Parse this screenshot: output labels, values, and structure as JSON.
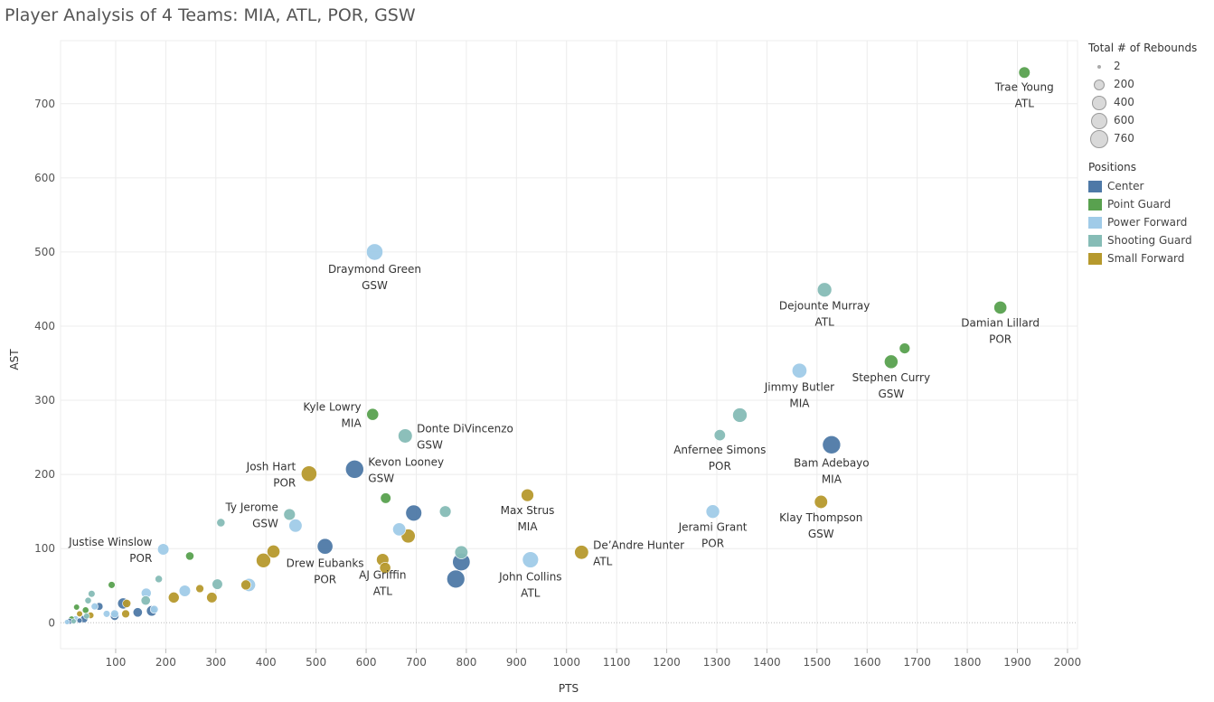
{
  "chart_data": {
    "type": "scatter",
    "title": "Player Analysis of 4 Teams: MIA, ATL, POR, GSW",
    "xlabel": "PTS",
    "ylabel": "AST",
    "xlim": [
      -10,
      2020
    ],
    "ylim": [
      -35,
      785
    ],
    "x_ticks": [
      100,
      200,
      300,
      400,
      500,
      600,
      700,
      800,
      900,
      1000,
      1100,
      1200,
      1300,
      1400,
      1500,
      1600,
      1700,
      1800,
      1900,
      2000
    ],
    "y_ticks": [
      0,
      100,
      200,
      300,
      400,
      500,
      600,
      700
    ],
    "grid": true,
    "size_legend_title": "Total # of Rebounds",
    "size_legend_values": [
      "2",
      "200",
      "400",
      "600",
      "760"
    ],
    "color_legend_title": "Positions",
    "positions": [
      {
        "name": "Center",
        "color": "#4e79a7"
      },
      {
        "name": "Point Guard",
        "color": "#59a14f"
      },
      {
        "name": "Power Forward",
        "color": "#a0cbe8"
      },
      {
        "name": "Shooting Guard",
        "color": "#86bcb6"
      },
      {
        "name": "Small Forward",
        "color": "#b6992d"
      }
    ],
    "points": [
      {
        "x": 1914,
        "y": 742,
        "reb": 220,
        "pos": "Point Guard",
        "name": "Trae Young",
        "team": "ATL",
        "label_side": "below"
      },
      {
        "x": 617,
        "y": 500,
        "reb": 600,
        "pos": "Power Forward",
        "name": "Draymond Green",
        "team": "GSW",
        "label_side": "below"
      },
      {
        "x": 1515,
        "y": 449,
        "reb": 420,
        "pos": "Shooting Guard",
        "name": "Dejounte Murray",
        "team": "ATL",
        "label_side": "below"
      },
      {
        "x": 1866,
        "y": 425,
        "reb": 310,
        "pos": "Point Guard",
        "name": "Damian Lillard",
        "team": "POR",
        "label_side": "below"
      },
      {
        "x": 1465,
        "y": 340,
        "reb": 450,
        "pos": "Power Forward",
        "name": "Jimmy Butler",
        "team": "MIA",
        "label_side": "below"
      },
      {
        "x": 1648,
        "y": 352,
        "reb": 360,
        "pos": "Point Guard",
        "name": "Stephen Curry",
        "team": "GSW",
        "label_side": "below"
      },
      {
        "x": 1675,
        "y": 370,
        "reb": 180,
        "pos": "Point Guard",
        "name": "",
        "team": "",
        "label_side": "none"
      },
      {
        "x": 613,
        "y": 281,
        "reb": 250,
        "pos": "Point Guard",
        "name": "Kyle Lowry",
        "team": "MIA",
        "label_side": "left"
      },
      {
        "x": 678,
        "y": 252,
        "reb": 400,
        "pos": "Shooting Guard",
        "name": "Donte DiVincenzo",
        "team": "GSW",
        "label_side": "right"
      },
      {
        "x": 1346,
        "y": 280,
        "reb": 420,
        "pos": "Shooting Guard",
        "name": "",
        "team": "",
        "label_side": "none"
      },
      {
        "x": 1306,
        "y": 253,
        "reb": 210,
        "pos": "Shooting Guard",
        "name": "Anfernee Simons",
        "team": "POR",
        "label_side": "below"
      },
      {
        "x": 1529,
        "y": 240,
        "reb": 760,
        "pos": "Center",
        "name": "Bam Adebayo",
        "team": "MIA",
        "label_side": "below"
      },
      {
        "x": 486,
        "y": 201,
        "reb": 520,
        "pos": "Small Forward",
        "name": "Josh Hart",
        "team": "POR",
        "label_side": "left"
      },
      {
        "x": 577,
        "y": 207,
        "reb": 760,
        "pos": "Center",
        "name": "Kevon Looney",
        "team": "GSW",
        "label_side": "right"
      },
      {
        "x": 922,
        "y": 172,
        "reb": 290,
        "pos": "Small Forward",
        "name": "Max Strus",
        "team": "MIA",
        "label_side": "below"
      },
      {
        "x": 1508,
        "y": 163,
        "reb": 330,
        "pos": "Small Forward",
        "name": "Klay Thompson",
        "team": "GSW",
        "label_side": "below"
      },
      {
        "x": 1292,
        "y": 150,
        "reb": 360,
        "pos": "Power Forward",
        "name": "Jerami Grant",
        "team": "POR",
        "label_side": "below"
      },
      {
        "x": 447,
        "y": 146,
        "reb": 230,
        "pos": "Shooting Guard",
        "name": "Ty Jerome",
        "team": "GSW",
        "label_side": "left"
      },
      {
        "x": 459,
        "y": 131,
        "reb": 330,
        "pos": "Power Forward",
        "name": "",
        "team": "",
        "label_side": "none"
      },
      {
        "x": 310,
        "y": 135,
        "reb": 80,
        "pos": "Shooting Guard",
        "name": "",
        "team": "",
        "label_side": "none"
      },
      {
        "x": 639,
        "y": 168,
        "reb": 170,
        "pos": "Point Guard",
        "name": "",
        "team": "",
        "label_side": "none"
      },
      {
        "x": 695,
        "y": 148,
        "reb": 560,
        "pos": "Center",
        "name": "",
        "team": "",
        "label_side": "none"
      },
      {
        "x": 758,
        "y": 150,
        "reb": 230,
        "pos": "Shooting Guard",
        "name": "",
        "team": "",
        "label_side": "none"
      },
      {
        "x": 666,
        "y": 126,
        "reb": 320,
        "pos": "Power Forward",
        "name": "",
        "team": "",
        "label_side": "none"
      },
      {
        "x": 684,
        "y": 117,
        "reb": 390,
        "pos": "Small Forward",
        "name": "",
        "team": "",
        "label_side": "none"
      },
      {
        "x": 518,
        "y": 103,
        "reb": 520,
        "pos": "Center",
        "name": "Drew Eubanks",
        "team": "POR",
        "label_side": "below"
      },
      {
        "x": 1030,
        "y": 95,
        "reb": 390,
        "pos": "Small Forward",
        "name": "De’Andre Hunter",
        "team": "ATL",
        "label_side": "right"
      },
      {
        "x": 928,
        "y": 85,
        "reb": 560,
        "pos": "Power Forward",
        "name": "John Collins",
        "team": "ATL",
        "label_side": "below"
      },
      {
        "x": 790,
        "y": 82,
        "reb": 700,
        "pos": "Center",
        "name": "",
        "team": "",
        "label_side": "none"
      },
      {
        "x": 779,
        "y": 59,
        "reb": 740,
        "pos": "Center",
        "name": "",
        "team": "",
        "label_side": "none"
      },
      {
        "x": 790,
        "y": 95,
        "reb": 330,
        "pos": "Shooting Guard",
        "name": "",
        "team": "",
        "label_side": "none"
      },
      {
        "x": 633,
        "y": 85,
        "reb": 280,
        "pos": "Small Forward",
        "name": "AJ Griffin",
        "team": "ATL",
        "label_side": "below"
      },
      {
        "x": 638,
        "y": 74,
        "reb": 200,
        "pos": "Small Forward",
        "name": "",
        "team": "",
        "label_side": "none"
      },
      {
        "x": 415,
        "y": 96,
        "reb": 310,
        "pos": "Small Forward",
        "name": "",
        "team": "",
        "label_side": "none"
      },
      {
        "x": 395,
        "y": 84,
        "reb": 420,
        "pos": "Small Forward",
        "name": "",
        "team": "",
        "label_side": "none"
      },
      {
        "x": 195,
        "y": 99,
        "reb": 220,
        "pos": "Power Forward",
        "name": "Justise Winslow",
        "team": "POR",
        "label_side": "left"
      },
      {
        "x": 248,
        "y": 90,
        "reb": 80,
        "pos": "Point Guard",
        "name": "",
        "team": "",
        "label_side": "none"
      },
      {
        "x": 366,
        "y": 51,
        "reb": 330,
        "pos": "Power Forward",
        "name": "",
        "team": "",
        "label_side": "none"
      },
      {
        "x": 360,
        "y": 51,
        "reb": 150,
        "pos": "Small Forward",
        "name": "",
        "team": "",
        "label_side": "none"
      },
      {
        "x": 303,
        "y": 52,
        "reb": 170,
        "pos": "Shooting Guard",
        "name": "",
        "team": "",
        "label_side": "none"
      },
      {
        "x": 238,
        "y": 43,
        "reb": 220,
        "pos": "Power Forward",
        "name": "",
        "team": "",
        "label_side": "none"
      },
      {
        "x": 268,
        "y": 46,
        "reb": 70,
        "pos": "Small Forward",
        "name": "",
        "team": "",
        "label_side": "none"
      },
      {
        "x": 292,
        "y": 34,
        "reb": 170,
        "pos": "Small Forward",
        "name": "",
        "team": "",
        "label_side": "none"
      },
      {
        "x": 216,
        "y": 34,
        "reb": 190,
        "pos": "Small Forward",
        "name": "",
        "team": "",
        "label_side": "none"
      },
      {
        "x": 186,
        "y": 59,
        "reb": 50,
        "pos": "Shooting Guard",
        "name": "",
        "team": "",
        "label_side": "none"
      },
      {
        "x": 161,
        "y": 40,
        "reb": 150,
        "pos": "Power Forward",
        "name": "",
        "team": "",
        "label_side": "none"
      },
      {
        "x": 160,
        "y": 30,
        "reb": 120,
        "pos": "Shooting Guard",
        "name": "",
        "team": "",
        "label_side": "none"
      },
      {
        "x": 172,
        "y": 16,
        "reb": 170,
        "pos": "Center",
        "name": "",
        "team": "",
        "label_side": "none"
      },
      {
        "x": 177,
        "y": 18,
        "reb": 70,
        "pos": "Power Forward",
        "name": "",
        "team": "",
        "label_side": "none"
      },
      {
        "x": 144,
        "y": 14,
        "reb": 120,
        "pos": "Center",
        "name": "",
        "team": "",
        "label_side": "none"
      },
      {
        "x": 115,
        "y": 26,
        "reb": 200,
        "pos": "Center",
        "name": "",
        "team": "",
        "label_side": "none"
      },
      {
        "x": 122,
        "y": 26,
        "reb": 80,
        "pos": "Small Forward",
        "name": "",
        "team": "",
        "label_side": "none"
      },
      {
        "x": 120,
        "y": 12,
        "reb": 70,
        "pos": "Small Forward",
        "name": "",
        "team": "",
        "label_side": "none"
      },
      {
        "x": 98,
        "y": 12,
        "reb": 70,
        "pos": "Power Forward",
        "name": "",
        "team": "",
        "label_side": "none"
      },
      {
        "x": 98,
        "y": 9,
        "reb": 90,
        "pos": "Center",
        "name": "",
        "team": "",
        "label_side": "none"
      },
      {
        "x": 92,
        "y": 51,
        "reb": 40,
        "pos": "Point Guard",
        "name": "",
        "team": "",
        "label_side": "none"
      },
      {
        "x": 82,
        "y": 12,
        "reb": 40,
        "pos": "Power Forward",
        "name": "",
        "team": "",
        "label_side": "none"
      },
      {
        "x": 67,
        "y": 22,
        "reb": 60,
        "pos": "Center",
        "name": "",
        "team": "",
        "label_side": "none"
      },
      {
        "x": 58,
        "y": 22,
        "reb": 40,
        "pos": "Power Forward",
        "name": "",
        "team": "",
        "label_side": "none"
      },
      {
        "x": 52,
        "y": 39,
        "reb": 40,
        "pos": "Shooting Guard",
        "name": "",
        "team": "",
        "label_side": "none"
      },
      {
        "x": 45,
        "y": 30,
        "reb": 30,
        "pos": "Shooting Guard",
        "name": "",
        "team": "",
        "label_side": "none"
      },
      {
        "x": 50,
        "y": 10,
        "reb": 30,
        "pos": "Small Forward",
        "name": "",
        "team": "",
        "label_side": "none"
      },
      {
        "x": 40,
        "y": 17,
        "reb": 30,
        "pos": "Point Guard",
        "name": "",
        "team": "",
        "label_side": "none"
      },
      {
        "x": 37,
        "y": 5,
        "reb": 50,
        "pos": "Center",
        "name": "",
        "team": "",
        "label_side": "none"
      },
      {
        "x": 42,
        "y": 9,
        "reb": 20,
        "pos": "Shooting Guard",
        "name": "",
        "team": "",
        "label_side": "none"
      },
      {
        "x": 28,
        "y": 12,
        "reb": 20,
        "pos": "Small Forward",
        "name": "",
        "team": "",
        "label_side": "none"
      },
      {
        "x": 22,
        "y": 21,
        "reb": 20,
        "pos": "Point Guard",
        "name": "",
        "team": "",
        "label_side": "none"
      },
      {
        "x": 20,
        "y": 5,
        "reb": 30,
        "pos": "Power Forward",
        "name": "",
        "team": "",
        "label_side": "none"
      },
      {
        "x": 12,
        "y": 5,
        "reb": 20,
        "pos": "Point Guard",
        "name": "",
        "team": "",
        "label_side": "none"
      },
      {
        "x": 8,
        "y": 2,
        "reb": 20,
        "pos": "Center",
        "name": "",
        "team": "",
        "label_side": "none"
      },
      {
        "x": 3,
        "y": 1,
        "reb": 10,
        "pos": "Power Forward",
        "name": "",
        "team": "",
        "label_side": "none"
      },
      {
        "x": 16,
        "y": 2,
        "reb": 10,
        "pos": "Shooting Guard",
        "name": "",
        "team": "",
        "label_side": "none"
      },
      {
        "x": 28,
        "y": 3,
        "reb": 10,
        "pos": "Center",
        "name": "",
        "team": "",
        "label_side": "none"
      }
    ]
  }
}
